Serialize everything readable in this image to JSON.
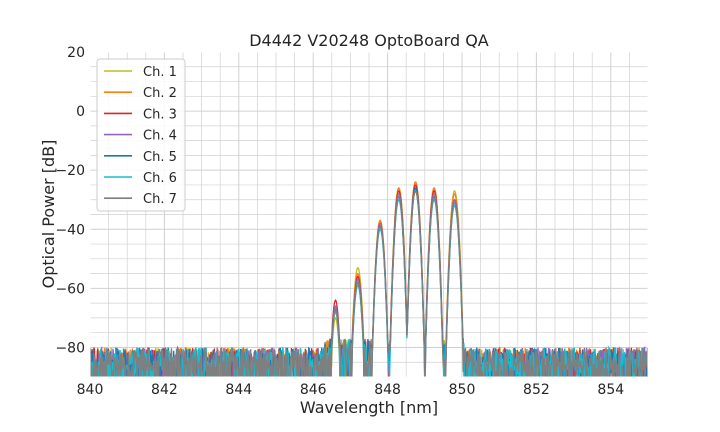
{
  "chart_data": {
    "type": "line",
    "title": "D4442 V20248 OptoBoard QA",
    "xlabel": "Wavelength [nm]",
    "ylabel": "Optical Power [dB]",
    "xlim": [
      840,
      855
    ],
    "ylim": [
      -90,
      20
    ],
    "xticks": [
      "840",
      "842",
      "844",
      "846",
      "848",
      "850",
      "852",
      "854"
    ],
    "yticks": [
      "20",
      "0",
      "−20",
      "−40",
      "−60",
      "−80"
    ],
    "grid": true,
    "legend": "upper-left",
    "noise_floor_db": -82,
    "series": [
      {
        "name": "Ch. 1",
        "color": "#bcbd22",
        "peaks": [
          [
            846.6,
            -70
          ],
          [
            847.2,
            -53
          ],
          [
            847.8,
            -37
          ],
          [
            848.3,
            -26
          ],
          [
            848.75,
            -24
          ],
          [
            849.25,
            -26
          ],
          [
            849.8,
            -27
          ]
        ]
      },
      {
        "name": "Ch. 2",
        "color": "#ff7f0e",
        "peaks": [
          [
            846.6,
            -67
          ],
          [
            847.2,
            -55
          ],
          [
            847.8,
            -37
          ],
          [
            848.3,
            -26
          ],
          [
            848.75,
            -24
          ],
          [
            849.25,
            -26
          ],
          [
            849.8,
            -28
          ]
        ]
      },
      {
        "name": "Ch. 3",
        "color": "#d62728",
        "peaks": [
          [
            846.6,
            -64
          ],
          [
            847.2,
            -56
          ],
          [
            847.8,
            -38
          ],
          [
            848.3,
            -27
          ],
          [
            848.75,
            -25
          ],
          [
            849.25,
            -27
          ],
          [
            849.8,
            -30
          ]
        ]
      },
      {
        "name": "Ch. 4",
        "color": "#9467bd",
        "peaks": [
          [
            846.6,
            -66
          ],
          [
            847.2,
            -57
          ],
          [
            847.8,
            -38
          ],
          [
            848.3,
            -28
          ],
          [
            848.75,
            -26
          ],
          [
            849.25,
            -28
          ],
          [
            849.8,
            -30
          ]
        ]
      },
      {
        "name": "Ch. 5",
        "color": "#1f77b4",
        "peaks": [
          [
            846.6,
            -67
          ],
          [
            847.2,
            -58
          ],
          [
            847.8,
            -39
          ],
          [
            848.3,
            -29
          ],
          [
            848.75,
            -26
          ],
          [
            849.25,
            -29
          ],
          [
            849.8,
            -31
          ]
        ]
      },
      {
        "name": "Ch. 6",
        "color": "#17becf",
        "peaks": [
          [
            846.6,
            -68
          ],
          [
            847.2,
            -59
          ],
          [
            847.8,
            -40
          ],
          [
            848.3,
            -30
          ],
          [
            848.75,
            -27
          ],
          [
            849.25,
            -30
          ],
          [
            849.8,
            -32
          ]
        ]
      },
      {
        "name": "Ch. 7",
        "color": "#7f7f7f",
        "peaks": [
          [
            846.6,
            -67
          ],
          [
            847.2,
            -58
          ],
          [
            847.8,
            -39
          ],
          [
            848.3,
            -29
          ],
          [
            848.75,
            -27
          ],
          [
            849.25,
            -29
          ],
          [
            849.8,
            -31
          ]
        ]
      }
    ]
  }
}
